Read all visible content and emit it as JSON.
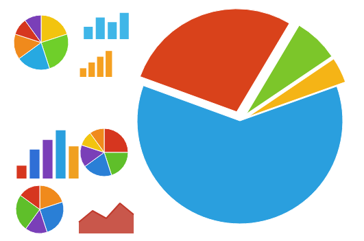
{
  "chart_data": [
    {
      "type": "pie",
      "values": [
        28,
        7,
        4,
        61
      ],
      "colors": [
        "#d9421b",
        "#7cc62a",
        "#f5b416",
        "#2a9fde"
      ]
    },
    {
      "type": "pie",
      "values": [
        20,
        25,
        20,
        15,
        10,
        10
      ],
      "colors": [
        "#f2c40f",
        "#6fcf2a",
        "#27a9e1",
        "#f08a1c",
        "#d6361f",
        "#7a3fb8"
      ]
    },
    {
      "type": "bar",
      "categories": [
        null,
        null,
        null,
        null,
        null
      ],
      "values": [
        20,
        45,
        60,
        75,
        50
      ],
      "colors": [
        "#d6361f",
        "#2f6fd6",
        "#7a3fb8",
        "#2a9fde",
        "#f0a020"
      ],
      "ylim": [
        0,
        80
      ],
      "tick_labels": false,
      "grid": false
    },
    {
      "type": "pie",
      "values": [
        25,
        20,
        20,
        15,
        10,
        10
      ],
      "colors": [
        "#d6361f",
        "#5fbf2a",
        "#2a7fd6",
        "#7a3fb8",
        "#f2c40f",
        "#f08a1c"
      ]
    },
    {
      "type": "pie",
      "values": [
        20,
        25,
        15,
        25,
        15
      ],
      "colors": [
        "#f08a1c",
        "#2a7fd6",
        "#7a3fb8",
        "#5fbf2a",
        "#d6361f"
      ]
    },
    {
      "type": "line",
      "categories": [
        null,
        null,
        null,
        null,
        null
      ],
      "values": [
        30,
        60,
        40,
        80,
        50
      ],
      "color": "#c0392b",
      "ylim": [
        0,
        100
      ],
      "tick_labels": false,
      "grid": false
    },
    {
      "type": "bar",
      "categories": [
        null,
        null,
        null,
        null
      ],
      "values": [
        40,
        70,
        55,
        85
      ],
      "colors": [
        "#3fb6e8",
        "#3fb6e8",
        "#3fb6e8",
        "#3fb6e8"
      ],
      "ylim": [
        0,
        100
      ],
      "tick_labels": false,
      "grid": false
    },
    {
      "type": "bar",
      "categories": [
        null,
        null,
        null,
        null
      ],
      "values": [
        30,
        50,
        70,
        90
      ],
      "colors": [
        "#f5a020",
        "#f5a020",
        "#f5a020",
        "#f5a020"
      ],
      "ylim": [
        0,
        100
      ],
      "tick_labels": false,
      "grid": false
    }
  ]
}
